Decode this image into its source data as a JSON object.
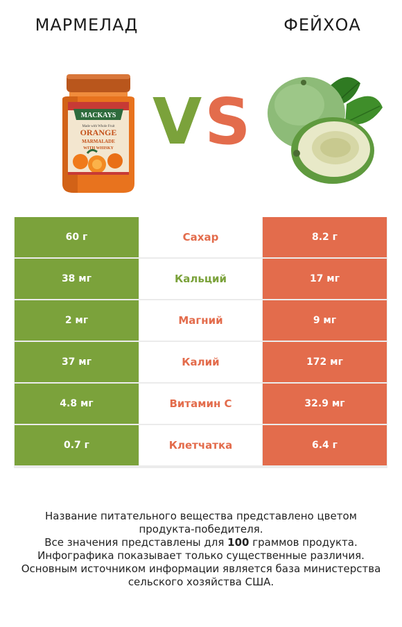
{
  "header": {
    "left_title": "МАРМЕЛАД",
    "right_title": "ФЕЙХОА",
    "vs_v": "V",
    "vs_s": "S"
  },
  "jar_label": {
    "brand": "MACKAYS",
    "tagline": "Made with Whole Fruit",
    "line1": "ORANGE",
    "line2": "MARMALADE",
    "line3": "WITH WHISKY"
  },
  "colors": {
    "winner_left": "#7ba23b",
    "winner_right": "#e36c4c"
  },
  "rows": [
    {
      "left": "60 г",
      "nutrient": "Сахар",
      "right": "8.2 г",
      "winner": "right"
    },
    {
      "left": "38 мг",
      "nutrient": "Кальций",
      "right": "17 мг",
      "winner": "left"
    },
    {
      "left": "2 мг",
      "nutrient": "Магний",
      "right": "9 мг",
      "winner": "right"
    },
    {
      "left": "37 мг",
      "nutrient": "Калий",
      "right": "172 мг",
      "winner": "right"
    },
    {
      "left": "4.8 мг",
      "nutrient": "Витамин C",
      "right": "32.9 мг",
      "winner": "right"
    },
    {
      "left": "0.7 г",
      "nutrient": "Клетчатка",
      "right": "6.4 г",
      "winner": "right"
    }
  ],
  "footer": {
    "line1": "Название питательного вещества представлено цветом",
    "line2": "продукта-победителя.",
    "line3a": "Все значения представлены для ",
    "line3b": "100",
    "line3c": " граммов продукта.",
    "line4": "Инфографика показывает только существенные различия.",
    "line5": "Основным источником информации является база министерства",
    "line6": "сельского хозяйства США."
  }
}
